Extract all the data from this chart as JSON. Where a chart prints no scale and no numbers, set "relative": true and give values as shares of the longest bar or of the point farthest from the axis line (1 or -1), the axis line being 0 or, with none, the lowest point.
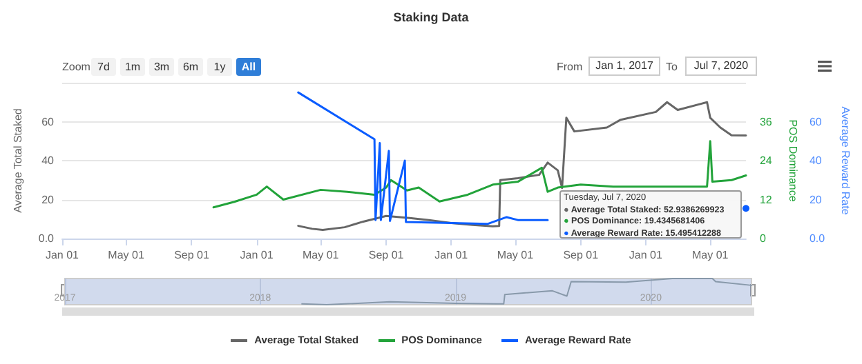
{
  "chart_data": [
    {
      "type": "line",
      "title": "Staking Data",
      "ylabel": "Average Total Staked",
      "y2label": "POS Dominance",
      "y3label": "Average Reward Rate",
      "xlim": [
        "2017-01-01",
        "2020-07-07"
      ],
      "xticks": [
        {
          "value": "2017-01-01",
          "label": "Jan 01"
        },
        {
          "value": "2017-05-01",
          "label": "May 01"
        },
        {
          "value": "2017-09-01",
          "label": "Sep 01"
        },
        {
          "value": "2018-01-01",
          "label": "Jan 01"
        },
        {
          "value": "2018-05-01",
          "label": "May 01"
        },
        {
          "value": "2018-09-01",
          "label": "Sep 01"
        },
        {
          "value": "2019-01-01",
          "label": "Jan 01"
        },
        {
          "value": "2019-05-01",
          "label": "May 01"
        },
        {
          "value": "2019-09-01",
          "label": "Sep 01"
        },
        {
          "value": "2020-01-01",
          "label": "Jan 01"
        },
        {
          "value": "2020-05-01",
          "label": "May 01"
        }
      ],
      "ylim": [
        0,
        80
      ],
      "yticks": [
        {
          "value": 0,
          "label": "0.0"
        },
        20,
        40,
        60,
        {
          "value": 80,
          "label": null
        }
      ],
      "y2lim": [
        0,
        48
      ],
      "y2ticks": [
        0,
        12,
        24,
        36
      ],
      "y3lim": [
        0,
        80
      ],
      "y3ticks": [
        {
          "value": 0,
          "label": "0.0"
        },
        20,
        40,
        60
      ],
      "grid": "y",
      "legend": "bottom",
      "marker": "none",
      "line_style": "solid",
      "series": [
        {
          "name": "Average Total Staked",
          "color": "#666666",
          "x": [
            "2018-03-20",
            "2018-04-15",
            "2018-05-05",
            "2018-06-15",
            "2018-07-20",
            "2018-09-01",
            "2018-10-15",
            "2018-11-20",
            "2019-01-01",
            "2019-02-10",
            "2019-03-20",
            "2019-04-01",
            "2019-04-03",
            "2019-05-06",
            "2019-06-15",
            "2019-07-01",
            "2019-07-20",
            "2019-07-28",
            "2019-08-05",
            "2019-08-20",
            "2019-10-20",
            "2019-11-15",
            "2020-01-20",
            "2020-02-10",
            "2020-03-01",
            "2020-04-25",
            "2020-05-01",
            "2020-05-20",
            "2020-06-10",
            "2020-07-07"
          ],
          "values": [
            6.5,
            5,
            4.4,
            5.8,
            8.7,
            11.6,
            10.5,
            9.5,
            8,
            7,
            6.3,
            6.5,
            30,
            31,
            32.7,
            39,
            35,
            26,
            62,
            55,
            57,
            61,
            65,
            70,
            66,
            70,
            62,
            57,
            53,
            52.9386269923
          ]
        },
        {
          "name": "POS Dominance",
          "color": "#22a33a",
          "axis": "y2",
          "x": [
            "2017-10-12",
            "2017-11-20",
            "2018-01-01",
            "2018-01-20",
            "2018-02-20",
            "2018-05-01",
            "2018-06-20",
            "2018-08-10",
            "2018-09-01",
            "2018-09-10",
            "2018-10-10",
            "2018-11-01",
            "2018-12-10",
            "2019-02-01",
            "2019-03-20",
            "2019-05-06",
            "2019-06-20",
            "2019-07-01",
            "2019-07-20",
            "2019-09-01",
            "2019-11-01",
            "2020-01-01",
            "2020-04-25",
            "2020-05-01",
            "2020-05-05",
            "2020-06-10",
            "2020-07-07"
          ],
          "values": [
            9.6,
            11.3,
            13.5,
            16,
            12,
            15,
            14.4,
            13.5,
            15.7,
            18,
            14.8,
            15.7,
            11.4,
            13.5,
            16.6,
            17.5,
            21.8,
            14.4,
            15.7,
            16.6,
            16,
            16,
            16,
            30,
            17.5,
            18,
            19.4345681406
          ]
        },
        {
          "name": "Average Reward Rate",
          "color": "#0a5cff",
          "axis": "y3",
          "x": [
            "2018-03-20",
            "2018-08-10",
            "2018-08-12",
            "2018-08-20",
            "2018-08-22",
            "2018-09-06",
            "2018-09-08",
            "2018-10-06",
            "2018-10-08",
            "2019-01-01",
            "2019-03-10",
            "2019-04-15",
            "2019-05-06",
            "2019-07-01",
            "2019-07-10",
            "2020-07-07"
          ],
          "values": [
            75,
            51,
            9.5,
            49,
            9.5,
            45,
            9,
            40,
            8.5,
            8,
            7.5,
            11,
            9.5,
            9.5,
            null,
            15.495412288
          ]
        }
      ],
      "annotations": [
        "Tuesday, Jul 7, 2020",
        "● Average Total Staked: 52.9386269923",
        "● POS Dominance: 19.4345681406",
        "● Average Reward Rate: 15.495412288",
        "Zoom",
        "7d",
        "1m",
        "3m",
        "6m",
        "1y",
        "All",
        "From",
        "Jan 1, 2017",
        "To",
        "Jul 7, 2020"
      ]
    },
    {
      "type": "line",
      "xlim": [
        "2017-01-01",
        "2020-07-07"
      ],
      "xticks": [
        {
          "value": "2017-01-01",
          "label": "2017"
        },
        {
          "value": "2018-01-01",
          "label": "2018"
        },
        {
          "value": "2019-01-01",
          "label": "2019"
        },
        {
          "value": "2020-01-01",
          "label": "2020"
        }
      ],
      "relative": true,
      "grid": "x",
      "marker": "none",
      "series": [
        {
          "color": "#8899aa",
          "x": [
            "2018-03-20",
            "2018-05-05",
            "2018-09-01",
            "2019-01-01",
            "2019-03-20",
            "2019-04-01",
            "2019-04-03",
            "2019-07-01",
            "2019-07-28",
            "2019-08-05",
            "2019-11-15",
            "2020-02-10",
            "2020-04-25",
            "2020-05-01",
            "2020-07-07"
          ],
          "values": [
            0.03,
            0,
            0.11,
            0.05,
            0.03,
            0.03,
            0.39,
            0.53,
            0.33,
            0.88,
            0.86,
            1,
            1,
            0.88,
            0.74
          ]
        }
      ]
    }
  ]
}
